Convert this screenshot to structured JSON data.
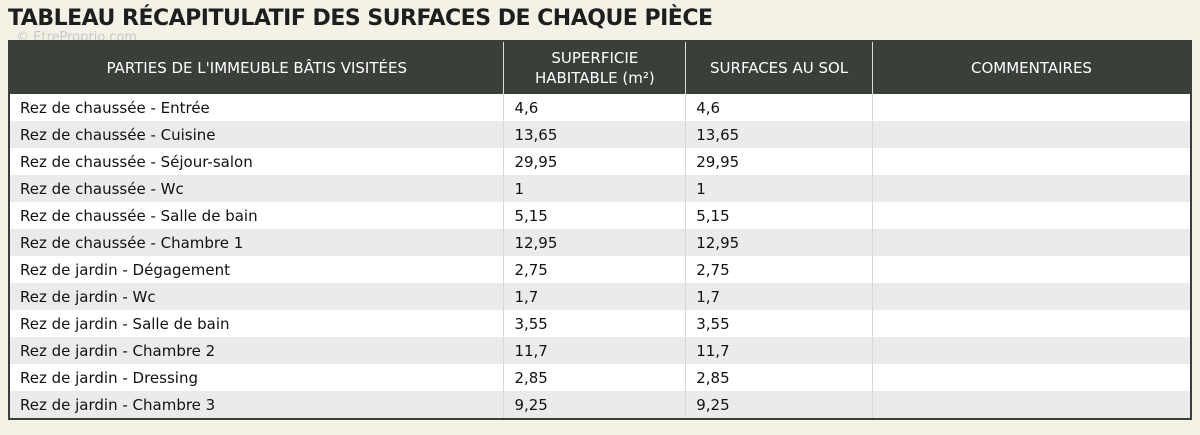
{
  "header": {
    "title": "TABLEAU RÉCAPITULATIF DES SURFACES DE CHAQUE PIÈCE",
    "watermark": "© EtreProprio.com"
  },
  "table": {
    "columns": [
      "PARTIES DE L'IMMEUBLE BÂTIS VISITÉES",
      "SUPERFICIE HABITABLE (m²)",
      "SURFACES AU SOL",
      "COMMENTAIRES"
    ],
    "rows": [
      [
        "Rez de chaussée - Entrée",
        "4,6",
        "4,6"
      ],
      [
        "Rez de chaussée - Cuisine",
        "13,65",
        "13,65"
      ],
      [
        "Rez de chaussée - Séjour-salon",
        "29,95",
        "29,95"
      ],
      [
        "Rez de chaussée - Wc",
        "1",
        "1"
      ],
      [
        "Rez de chaussée - Salle de bain",
        "5,15",
        "5,15"
      ],
      [
        "Rez de chaussée - Chambre 1",
        "12,95",
        "12,95"
      ],
      [
        "Rez de jardin - Dégagement",
        "2,75",
        "2,75"
      ],
      [
        "Rez de jardin - Wc",
        "1,7",
        "1,7"
      ],
      [
        "Rez de jardin - Salle de bain",
        "3,55",
        "3,55"
      ],
      [
        "Rez de jardin - Chambre 2",
        "11,7",
        "11,7"
      ],
      [
        "Rez de jardin - Dressing",
        "2,85",
        "2,85"
      ],
      [
        "Rez de jardin - Chambre 3",
        "9,25",
        "9,25"
      ]
    ]
  }
}
